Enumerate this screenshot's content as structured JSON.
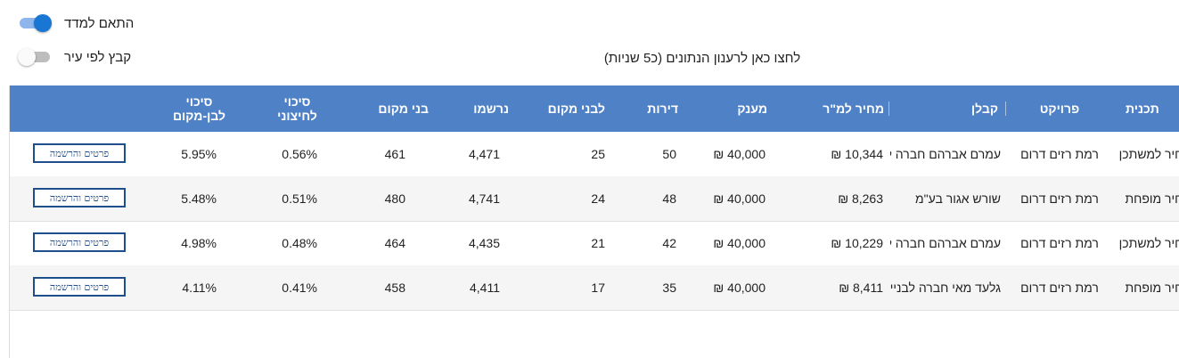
{
  "toggles": {
    "fit_to_screen": {
      "label": "התאם למדד",
      "state": "on"
    },
    "group_by_city": {
      "label": "קבץ לפי עיר",
      "state": "off"
    }
  },
  "refresh_text": "לחצו כאן לרענון הנתונים (כ5 שניות)",
  "table": {
    "headers": {
      "plan": "תכנית",
      "project": "פרויקט",
      "contractor": "קבלן",
      "price_per_sqm": "מחיר למ\"ר",
      "grant": "מענק",
      "apartments": "דירות",
      "for_locals": "לבני מקום",
      "registered": "נרשמו",
      "locals": "בני מקום",
      "chance_outsider_line1": "סיכוי",
      "chance_outsider_line2": "לחיצוני",
      "chance_local_line1": "סיכוי",
      "chance_local_line2": "לבן-מקום"
    },
    "button_label": "פרטים והרשמה",
    "rows": [
      {
        "plan": "מחיר למשתכן",
        "project": "רמת רזים דרום",
        "contractor": "עמרם אברהם חברה לבניין",
        "price_per_sqm": "₪ 10,344",
        "grant": "₪ 40,000",
        "apartments": "50",
        "for_locals": "25",
        "registered": "4,471",
        "locals": "461",
        "chance_outsider": "0.56%",
        "chance_local": "5.95%"
      },
      {
        "plan": "מחיר מופחת",
        "project": "רמת רזים דרום",
        "contractor": "שורש אגור בע\"מ",
        "price_per_sqm": "₪ 8,263",
        "grant": "₪ 40,000",
        "apartments": "48",
        "for_locals": "24",
        "registered": "4,741",
        "locals": "480",
        "chance_outsider": "0.51%",
        "chance_local": "5.48%"
      },
      {
        "plan": "מחיר למשתכן",
        "project": "רמת רזים דרום",
        "contractor": "עמרם אברהם חברה לבניין",
        "price_per_sqm": "₪ 10,229",
        "grant": "₪ 40,000",
        "apartments": "42",
        "for_locals": "21",
        "registered": "4,435",
        "locals": "464",
        "chance_outsider": "0.48%",
        "chance_local": "4.98%"
      },
      {
        "plan": "מחיר מופחת",
        "project": "רמת רזים דרום",
        "contractor": "גלעד מאי חברה לבניין",
        "price_per_sqm": "₪ 8,411",
        "grant": "₪ 40,000",
        "apartments": "35",
        "for_locals": "17",
        "registered": "4,411",
        "locals": "458",
        "chance_outsider": "0.41%",
        "chance_local": "4.11%"
      }
    ]
  },
  "colors": {
    "header_bg": "#4f81c7",
    "toggle_on": "#1976d2",
    "button_border": "#1f4e8c",
    "row_alt_bg": "#f5f5f5"
  }
}
